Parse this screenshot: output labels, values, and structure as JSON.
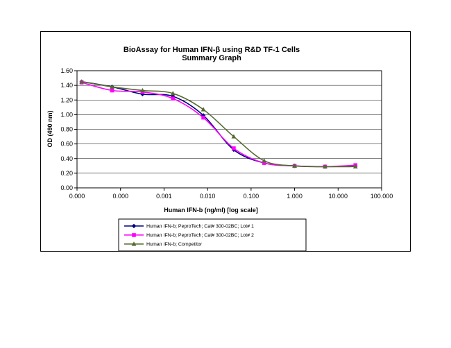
{
  "chart_data": {
    "type": "line",
    "title": "BioAssay for Human IFN-β using R&D TF-1 Cells",
    "subtitle": "Summary Graph",
    "xlabel": "Human IFN-b (ng/ml) [log scale]",
    "ylabel": "OD (490 nm)",
    "x_scale": "log",
    "x_tick_labels": [
      "0.000",
      "0.000",
      "0.001",
      "0.010",
      "0.100",
      "1.000",
      "10.000",
      "100.000"
    ],
    "y_tick_labels": [
      "0.00",
      "0.20",
      "0.40",
      "0.60",
      "0.80",
      "1.00",
      "1.20",
      "1.40",
      "1.60"
    ],
    "ylim": [
      0,
      1.6
    ],
    "grid": "horizontal",
    "legend_position": "bottom",
    "x": [
      1.28e-05,
      6.4e-05,
      0.00032,
      0.0016,
      0.008,
      0.04,
      0.2,
      1,
      5,
      25
    ],
    "series": [
      {
        "name": "Human IFN-b; PeproTech; Cat# 300-02BC; Lot# 1",
        "color": "#000080",
        "marker": "diamond",
        "values": [
          1.45,
          1.38,
          1.28,
          1.25,
          0.99,
          0.52,
          0.34,
          0.3,
          0.29,
          0.3
        ]
      },
      {
        "name": "Human IFN-b; PeproTech; Cat# 300-02BC; Lot# 2",
        "color": "#ff00ff",
        "marker": "square",
        "values": [
          1.44,
          1.33,
          1.31,
          1.22,
          0.96,
          0.54,
          0.34,
          0.3,
          0.29,
          0.31
        ]
      },
      {
        "name": "Human IFN-b; Competitor",
        "color": "#556b2f",
        "marker": "triangle",
        "values": [
          1.45,
          1.38,
          1.33,
          1.29,
          1.07,
          0.7,
          0.37,
          0.3,
          0.29,
          0.29
        ]
      }
    ]
  }
}
